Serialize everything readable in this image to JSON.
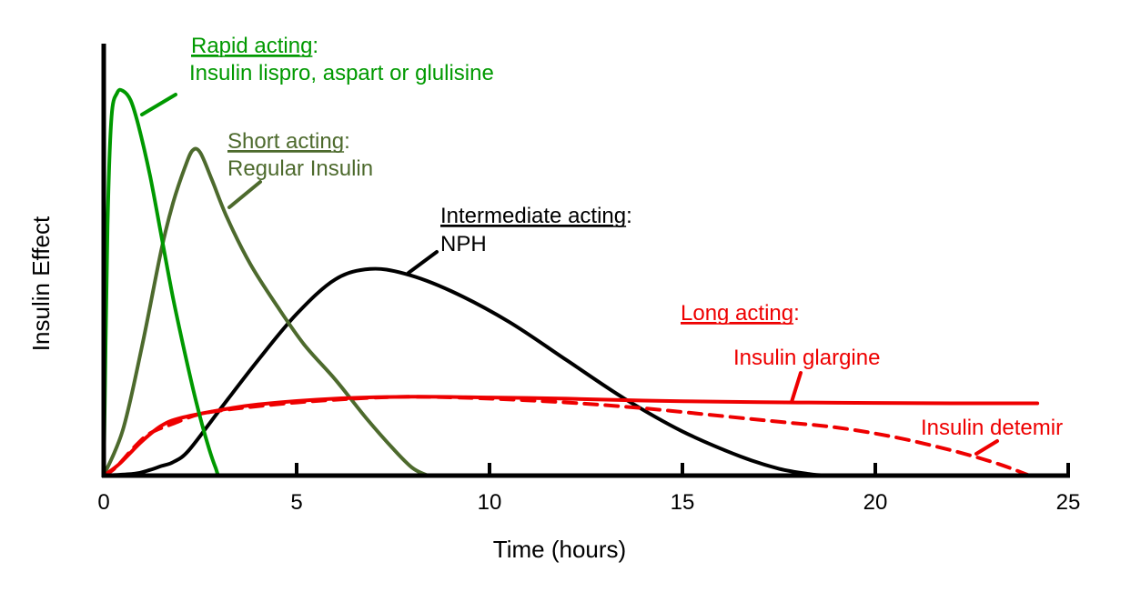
{
  "chart_data": {
    "type": "line",
    "title": "",
    "xlabel": "Time (hours)",
    "ylabel": "Insulin Effect",
    "xlim": [
      0,
      25
    ],
    "ylim": [
      0,
      1
    ],
    "xticks": [
      0,
      5,
      10,
      15,
      20,
      25
    ],
    "grid": false,
    "legend": "none",
    "series": [
      {
        "name": "Insulin lispro, aspart or glulisine",
        "color": "#009900",
        "dashed": false,
        "x": [
          0,
          0.1,
          0.2,
          0.35,
          0.5,
          0.7,
          0.9,
          1.2,
          1.5,
          1.8,
          2.1,
          2.4,
          2.7,
          2.9,
          3.0,
          3.3
        ],
        "y": [
          0.0,
          0.65,
          0.93,
          0.995,
          1.0,
          0.975,
          0.91,
          0.78,
          0.62,
          0.46,
          0.32,
          0.19,
          0.08,
          0.02,
          0.0,
          0.0
        ]
      },
      {
        "name": "Regular Insulin",
        "color": "#4d6a2d",
        "dashed": false,
        "x": [
          0,
          0.5,
          1.0,
          1.5,
          1.8,
          2.1,
          2.3,
          2.5,
          2.8,
          3.2,
          3.8,
          4.5,
          5.2,
          6.0,
          6.8,
          7.5,
          8.0,
          8.4
        ],
        "y": [
          0.0,
          0.12,
          0.34,
          0.59,
          0.71,
          0.8,
          0.845,
          0.84,
          0.77,
          0.67,
          0.55,
          0.44,
          0.34,
          0.25,
          0.15,
          0.07,
          0.02,
          0.0
        ]
      },
      {
        "name": "NPH",
        "color": "#000000",
        "dashed": false,
        "x": [
          0,
          0.8,
          1.2,
          1.5,
          1.8,
          2.2,
          3.0,
          4.0,
          5.0,
          6.0,
          6.9,
          7.8,
          9.0,
          10.5,
          12.0,
          13.5,
          15.0,
          16.5,
          17.5,
          18.3,
          18.8
        ],
        "y": [
          0.0,
          0.005,
          0.015,
          0.025,
          0.035,
          0.065,
          0.17,
          0.3,
          0.42,
          0.51,
          0.537,
          0.525,
          0.48,
          0.4,
          0.3,
          0.2,
          0.115,
          0.05,
          0.018,
          0.004,
          0.0
        ]
      },
      {
        "name": "Insulin glargine",
        "color": "#ee0000",
        "dashed": false,
        "x": [
          0,
          0.4,
          1.0,
          1.5,
          2.0,
          3.0,
          4.0,
          6.0,
          8.0,
          10.0,
          12.0,
          14.0,
          16.0,
          18.0,
          20.0,
          22.0,
          24.2
        ],
        "y": [
          0.0,
          0.03,
          0.09,
          0.13,
          0.15,
          0.17,
          0.185,
          0.2,
          0.205,
          0.203,
          0.2,
          0.195,
          0.192,
          0.19,
          0.189,
          0.188,
          0.188
        ]
      },
      {
        "name": "Insulin detemir",
        "color": "#ee0000",
        "dashed": true,
        "x": [
          0,
          0.3,
          0.8,
          1.2,
          1.8,
          2.5,
          3.5,
          5.0,
          6.5,
          8.0,
          10.0,
          12.0,
          14.0,
          16.0,
          17.5,
          19.0,
          20.5,
          22.0,
          23.2,
          24.0
        ],
        "y": [
          0.0,
          0.02,
          0.075,
          0.11,
          0.135,
          0.16,
          0.175,
          0.19,
          0.2,
          0.205,
          0.2,
          0.19,
          0.175,
          0.155,
          0.14,
          0.125,
          0.1,
          0.065,
          0.03,
          0.0
        ]
      }
    ],
    "annotations": [
      {
        "heading": "Rapid acting",
        "colon": ":",
        "line": "Insulin lispro, aspart or glulisine",
        "color": "#009900"
      },
      {
        "heading": "Short acting",
        "colon": ":",
        "line": "Regular Insulin",
        "color": "#4d6a2d"
      },
      {
        "heading": "Intermediate acting",
        "colon": ":",
        "line": "NPH",
        "color": "#000000"
      },
      {
        "heading": "Long acting",
        "colon": ":",
        "line": "",
        "color": "#ee0000"
      },
      {
        "heading": "",
        "colon": "",
        "line": "Insulin glargine",
        "color": "#ee0000"
      },
      {
        "heading": "",
        "colon": "",
        "line": "Insulin detemir",
        "color": "#ee0000"
      }
    ]
  }
}
